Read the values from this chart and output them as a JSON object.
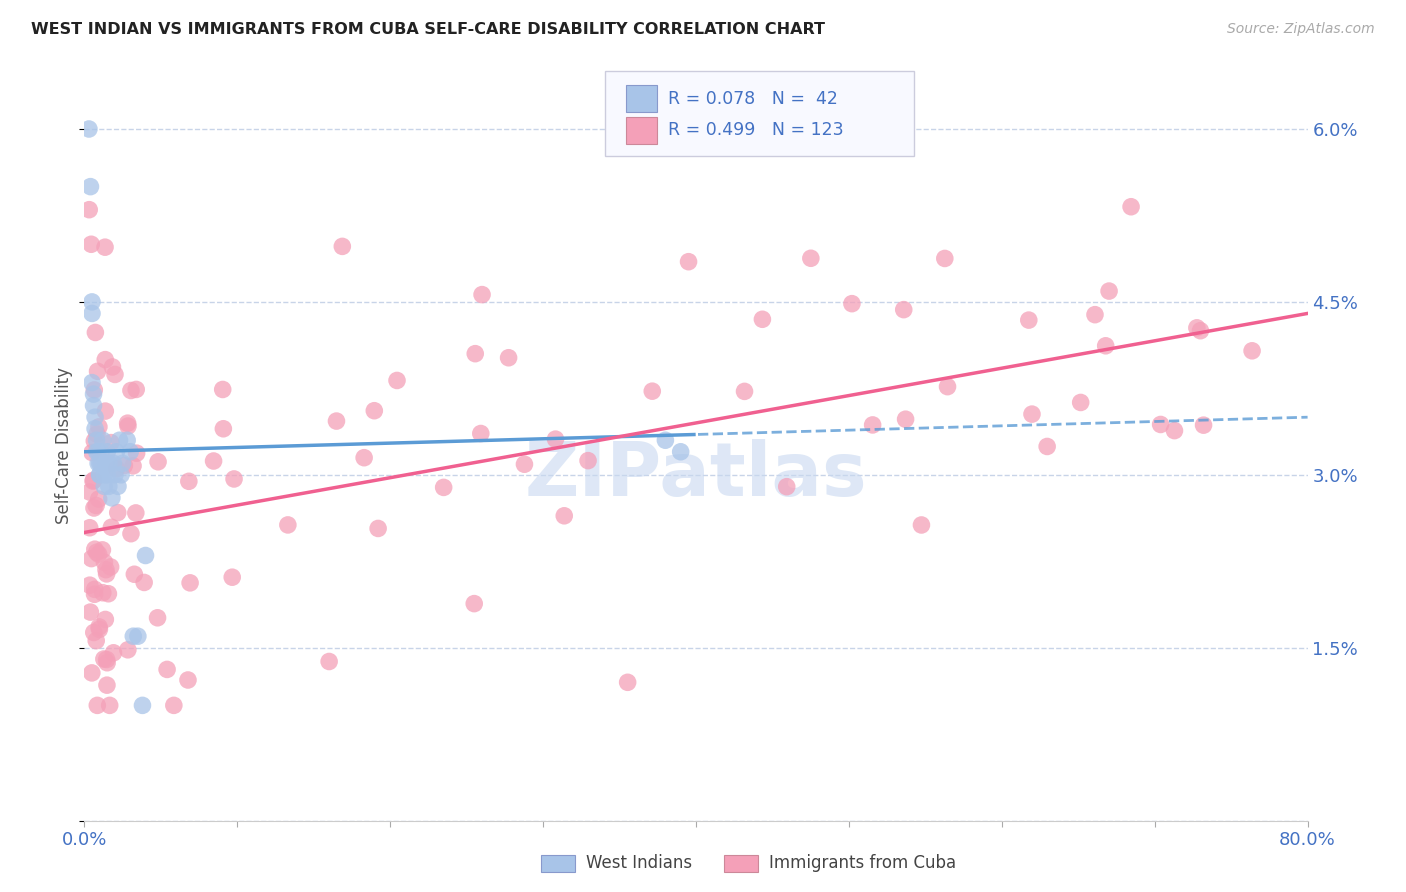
{
  "title": "WEST INDIAN VS IMMIGRANTS FROM CUBA SELF-CARE DISABILITY CORRELATION CHART",
  "source": "Source: ZipAtlas.com",
  "ylabel": "Self-Care Disability",
  "color_west_indian": "#a8c4e8",
  "color_cuba": "#f4a0b8",
  "color_blue_text": "#4472c4",
  "trend_blue_color": "#5b9bd5",
  "trend_pink_color": "#f06090",
  "background_color": "#ffffff",
  "grid_color": "#c8d4e8",
  "xmin": 0.0,
  "xmax": 0.8,
  "ymin": 0.0,
  "ymax": 0.065,
  "ytick_vals": [
    0.0,
    0.015,
    0.03,
    0.045,
    0.06
  ],
  "ytick_labels": [
    "",
    "1.5%",
    "3.0%",
    "4.5%",
    "6.0%"
  ],
  "xtick_show": [
    "0.0%",
    "80.0%"
  ],
  "legend_r1": "0.078",
  "legend_n1": "42",
  "legend_r2": "0.499",
  "legend_n2": "123",
  "watermark": "ZIPatlas",
  "watermark_color": "#c8d8f0"
}
